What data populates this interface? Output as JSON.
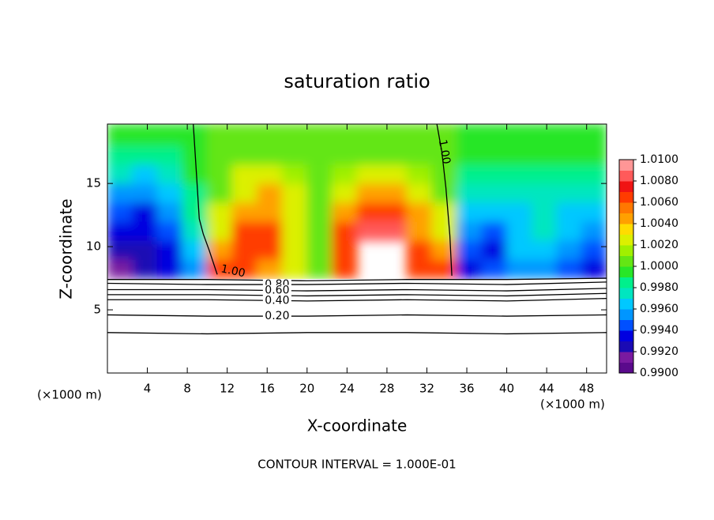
{
  "chart_data": {
    "type": "contour",
    "title": "saturation ratio",
    "x_label": "X-coordinate",
    "y_label": "Z-coordinate",
    "x_unit_left": "(×1000 m)",
    "x_unit_right": "(×1000 m)",
    "footnote": "CONTOUR INTERVAL = 1.000E-01",
    "xlim": [
      0,
      50
    ],
    "ylim": [
      0,
      19.7
    ],
    "xticks": [
      4,
      8,
      12,
      16,
      20,
      24,
      28,
      32,
      36,
      40,
      44,
      48
    ],
    "yticks": [
      5,
      10,
      15
    ],
    "field": {
      "x": [
        1.25,
        3.75,
        6.25,
        8.75,
        11.25,
        13.75,
        16.25,
        18.75,
        21.25,
        23.75,
        26.25,
        28.75,
        31.25,
        33.75,
        36.25,
        38.75,
        41.25,
        43.75,
        46.25,
        48.75
      ],
      "z": [
        8.25,
        9.75,
        11.25,
        12.75,
        14.25,
        15.75,
        17.25,
        18.75
      ],
      "values": [
        [
          0.991,
          0.992,
          0.993,
          0.995,
          1.006,
          1.007,
          1.005,
          1.003,
          1.001,
          1.006,
          null,
          null,
          1.007,
          1.007,
          0.993,
          0.994,
          0.995,
          0.995,
          0.994,
          0.993
        ],
        [
          0.992,
          0.992,
          0.993,
          0.996,
          1.004,
          1.007,
          1.006,
          1.003,
          1.0005,
          1.007,
          null,
          null,
          1.007,
          1.005,
          0.994,
          0.993,
          0.996,
          0.996,
          0.995,
          0.994
        ],
        [
          0.993,
          0.993,
          0.994,
          0.997,
          1.003,
          1.006,
          1.006,
          1.003,
          1.0008,
          1.006,
          1.008,
          1.008,
          1.005,
          1.003,
          0.995,
          0.994,
          0.996,
          0.997,
          0.996,
          0.995
        ],
        [
          0.994,
          0.993,
          0.995,
          0.998,
          1.002,
          1.005,
          1.005,
          1.003,
          1.001,
          1.004,
          1.006,
          1.006,
          1.004,
          1.002,
          0.996,
          0.996,
          0.996,
          0.997,
          0.996,
          0.996
        ],
        [
          0.995,
          0.995,
          0.996,
          0.998,
          1.001,
          1.003,
          1.004,
          1.002,
          1.0008,
          1.003,
          1.004,
          1.004,
          1.003,
          1.001,
          0.997,
          0.997,
          0.997,
          0.997,
          0.997,
          0.997
        ],
        [
          0.997,
          0.996,
          0.997,
          0.999,
          1.0005,
          1.002,
          1.002,
          1.0015,
          1.0005,
          1.0015,
          1.002,
          1.002,
          1.0015,
          1.0005,
          0.998,
          0.998,
          0.998,
          0.998,
          0.998,
          0.998
        ],
        [
          0.998,
          0.998,
          0.998,
          0.9995,
          1.0003,
          1.0008,
          1.001,
          1.0008,
          1.0005,
          1.0008,
          1.001,
          1.001,
          1.0008,
          1.0003,
          0.999,
          0.999,
          0.999,
          0.999,
          0.999,
          0.999
        ],
        [
          0.999,
          0.999,
          0.999,
          0.9995,
          1.0002,
          1.0005,
          1.0005,
          1.0005,
          1.0003,
          1.0005,
          1.0005,
          1.0005,
          1.0005,
          1.0002,
          0.9995,
          0.9995,
          0.9995,
          0.9995,
          0.9995,
          0.9995
        ]
      ]
    },
    "contours": [
      {
        "label": "1.00",
        "x": [
          8.6,
          8.9,
          9.2,
          9.6,
          10.2,
          11.0
        ],
        "z": [
          19.7,
          16.0,
          12.2,
          11.0,
          9.7,
          7.8
        ]
      },
      {
        "label": "1.00",
        "x": [
          33.0,
          33.5,
          33.9,
          34.3,
          34.5
        ],
        "z": [
          19.7,
          17.5,
          14.7,
          10.9,
          7.7
        ]
      },
      {
        "x": [
          0,
          10,
          20,
          30,
          40,
          50
        ],
        "z": [
          7.4,
          7.4,
          7.3,
          7.4,
          7.4,
          7.5
        ]
      },
      {
        "label": "0.80",
        "x": [
          0,
          10,
          20,
          30,
          40,
          50
        ],
        "z": [
          7.1,
          7.0,
          7.0,
          7.1,
          7.0,
          7.2
        ]
      },
      {
        "label": "0.60",
        "x": [
          0,
          10,
          20,
          30,
          40,
          50
        ],
        "z": [
          6.6,
          6.6,
          6.5,
          6.6,
          6.5,
          6.7
        ]
      },
      {
        "x": [
          0,
          10,
          20,
          30,
          40,
          50
        ],
        "z": [
          6.2,
          6.2,
          6.1,
          6.2,
          6.1,
          6.3
        ]
      },
      {
        "label": "0.40",
        "x": [
          0,
          10,
          20,
          30,
          40,
          50
        ],
        "z": [
          5.8,
          5.8,
          5.7,
          5.8,
          5.7,
          5.9
        ]
      },
      {
        "label": "0.20",
        "x": [
          0,
          10,
          20,
          30,
          40,
          50
        ],
        "z": [
          4.6,
          4.5,
          4.5,
          4.6,
          4.5,
          4.6
        ]
      },
      {
        "x": [
          0,
          10,
          20,
          30,
          40,
          50
        ],
        "z": [
          3.2,
          3.1,
          3.2,
          3.2,
          3.1,
          3.2
        ]
      }
    ],
    "colorbar": {
      "lim": [
        0.99,
        1.01
      ],
      "colors": [
        "#5a0a8c",
        "#7a1aa0",
        "#1a0ab4",
        "#0000e0",
        "#0050ff",
        "#0096ff",
        "#00c8ff",
        "#00e6c0",
        "#00f08c",
        "#28e628",
        "#64e614",
        "#a0f000",
        "#dcf000",
        "#ffdc00",
        "#ffa000",
        "#ff7800",
        "#ff3c00",
        "#f01414",
        "#ff5a5a",
        "#ff9696"
      ],
      "ticks": [
        {
          "value": 0.99,
          "label": "0.9900"
        },
        {
          "value": 0.992,
          "label": "0.9920"
        },
        {
          "value": 0.994,
          "label": "0.9940"
        },
        {
          "value": 0.996,
          "label": "0.9960"
        },
        {
          "value": 0.998,
          "label": "0.9980"
        },
        {
          "value": 1.0,
          "label": "1.0000"
        },
        {
          "value": 1.002,
          "label": "1.0020"
        },
        {
          "value": 1.004,
          "label": "1.0040"
        },
        {
          "value": 1.006,
          "label": "1.0060"
        },
        {
          "value": 1.008,
          "label": "1.0080"
        },
        {
          "value": 1.01,
          "label": "1.0100"
        }
      ]
    }
  }
}
